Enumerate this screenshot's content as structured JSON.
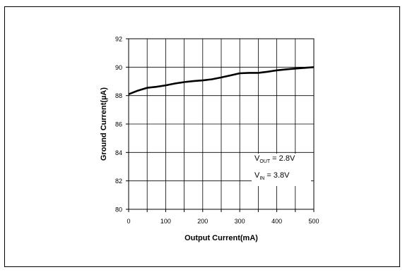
{
  "chart_data": {
    "type": "line",
    "title": "",
    "xlabel": "Output Current(mA)",
    "ylabel": "Ground Current(µA)",
    "xlim": [
      0,
      500
    ],
    "ylim": [
      80,
      92
    ],
    "xticks": [
      0,
      100,
      200,
      300,
      400,
      500
    ],
    "yticks": [
      80,
      82,
      84,
      86,
      88,
      90,
      92
    ],
    "grid": true,
    "x": [
      0,
      25,
      50,
      75,
      100,
      125,
      150,
      175,
      200,
      225,
      250,
      275,
      300,
      325,
      350,
      375,
      400,
      425,
      450,
      475,
      500
    ],
    "series": [
      {
        "values": [
          88.1,
          88.35,
          88.55,
          88.62,
          88.72,
          88.85,
          88.95,
          89.02,
          89.07,
          89.15,
          89.28,
          89.42,
          89.57,
          89.6,
          89.6,
          89.68,
          89.78,
          89.85,
          89.9,
          89.95,
          90.0
        ]
      }
    ],
    "annotations": [
      {
        "main": "V",
        "sub": "OUT",
        "rest": " = 2.8V"
      },
      {
        "main": "V",
        "sub": "IN",
        "rest": " = 3.8V"
      }
    ],
    "colors": {
      "line": "#000000",
      "grid": "#000000"
    }
  }
}
